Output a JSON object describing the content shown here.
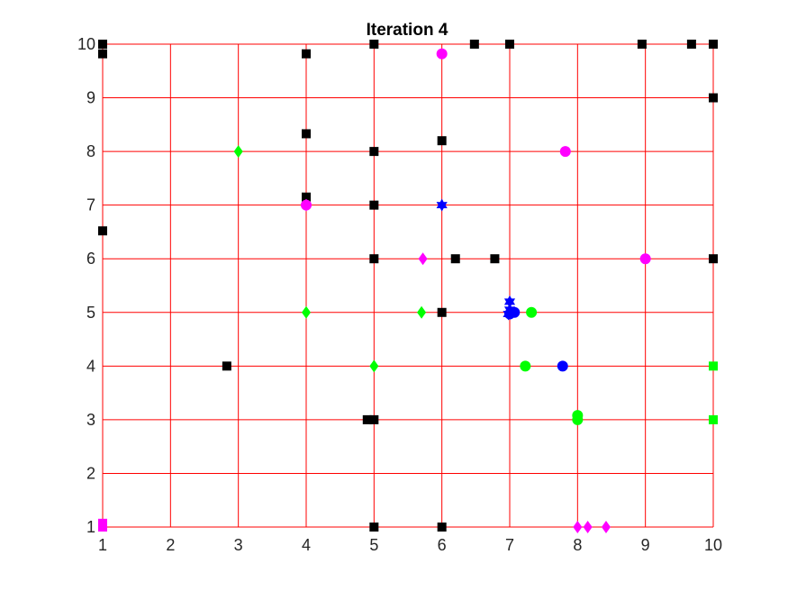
{
  "chart_data": {
    "type": "scatter",
    "title": "Iteration 4",
    "xlabel": "",
    "ylabel": "",
    "xlim": [
      1,
      10
    ],
    "ylim": [
      1,
      10
    ],
    "xticks": [
      "1",
      "2",
      "3",
      "4",
      "5",
      "6",
      "7",
      "8",
      "9",
      "10"
    ],
    "yticks": [
      "1",
      "2",
      "3",
      "4",
      "5",
      "6",
      "7",
      "8",
      "9",
      "10"
    ],
    "grid": true,
    "grid_color": "#ff0000",
    "series": [
      {
        "marker": "square",
        "color": "#000000",
        "points": [
          [
            1,
            10
          ],
          [
            1,
            9.82
          ],
          [
            1,
            6.52
          ],
          [
            4,
            9.82
          ],
          [
            4,
            8.33
          ],
          [
            4,
            7.15
          ],
          [
            5,
            10
          ],
          [
            5,
            8
          ],
          [
            5,
            7
          ],
          [
            5,
            6
          ],
          [
            6.48,
            10
          ],
          [
            7,
            10
          ],
          [
            8.95,
            10
          ],
          [
            9.68,
            10
          ],
          [
            10,
            10
          ],
          [
            10,
            9
          ],
          [
            6,
            8.2
          ],
          [
            6.2,
            6
          ],
          [
            6.78,
            6
          ],
          [
            10,
            6
          ],
          [
            6,
            5
          ],
          [
            2.83,
            4
          ],
          [
            4.9,
            3
          ],
          [
            5,
            3
          ],
          [
            5,
            1
          ],
          [
            6,
            1
          ]
        ]
      },
      {
        "marker": "circle",
        "color": "#ff00ff",
        "points": [
          [
            6,
            9.82
          ],
          [
            7.82,
            8
          ],
          [
            4,
            7
          ],
          [
            9,
            6
          ]
        ]
      },
      {
        "marker": "diamond",
        "color": "#ff00ff",
        "points": [
          [
            4,
            7
          ],
          [
            5.72,
            6
          ],
          [
            8,
            1
          ],
          [
            8.15,
            1
          ],
          [
            8.42,
            1
          ]
        ]
      },
      {
        "marker": "square",
        "color": "#ff00ff",
        "points": [
          [
            1,
            1.07
          ],
          [
            1,
            1
          ]
        ]
      },
      {
        "marker": "diamond",
        "color": "#00ff00",
        "points": [
          [
            3,
            8
          ],
          [
            4,
            5
          ],
          [
            5.7,
            5
          ],
          [
            5,
            4
          ]
        ]
      },
      {
        "marker": "circle",
        "color": "#00ff00",
        "points": [
          [
            7.32,
            5
          ],
          [
            7.23,
            4
          ],
          [
            8,
            3.08
          ],
          [
            8,
            3
          ]
        ]
      },
      {
        "marker": "square",
        "color": "#00ff00",
        "points": [
          [
            10,
            4
          ],
          [
            10,
            3
          ]
        ]
      },
      {
        "marker": "circle",
        "color": "#0000ff",
        "points": [
          [
            7,
            4.97
          ],
          [
            7.07,
            5
          ],
          [
            7.78,
            4
          ]
        ]
      },
      {
        "marker": "hexagram",
        "color": "#0000ff",
        "points": [
          [
            6,
            7
          ],
          [
            7,
            5.2
          ],
          [
            7,
            5.05
          ],
          [
            6.98,
            4.97
          ]
        ]
      }
    ]
  }
}
